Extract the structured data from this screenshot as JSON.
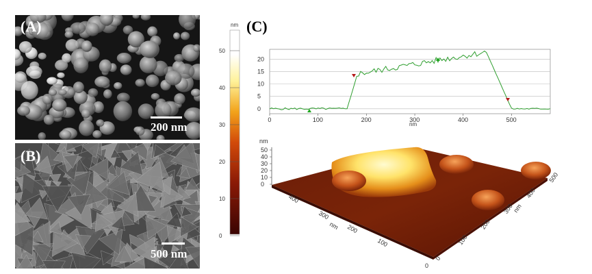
{
  "panels": {
    "a": {
      "label": "(A)",
      "scale": "200 nm"
    },
    "b": {
      "label": "(B)",
      "scale": "500 nm"
    },
    "c": {
      "label": "(C)"
    }
  },
  "colorbar": {
    "unit": "nm",
    "ticks": [
      "50",
      "40",
      "30",
      "20",
      "10",
      "0"
    ]
  },
  "profile": {
    "y_ticks": [
      "20",
      "15",
      "10",
      "5",
      "0"
    ],
    "x_ticks": [
      "0",
      "100",
      "200",
      "300",
      "400",
      "500"
    ],
    "x_label": "nm"
  },
  "surface3d": {
    "z_unit": "nm",
    "z_ticks": [
      "50",
      "40",
      "30",
      "20",
      "10",
      "0"
    ],
    "left_axis_ticks": [
      "300",
      "200",
      "100"
    ],
    "left_axis_top": "400",
    "left_axis_unit": "nm",
    "right_axis_ticks": [
      "0",
      "100",
      "200",
      "300",
      "400",
      "500"
    ],
    "right_axis_unit": "nm",
    "origin_label": "0"
  },
  "colors": {
    "afm_low": "#5a0f06",
    "afm_high": "#fff3a8",
    "profile_line": "#2e9e2e"
  }
}
